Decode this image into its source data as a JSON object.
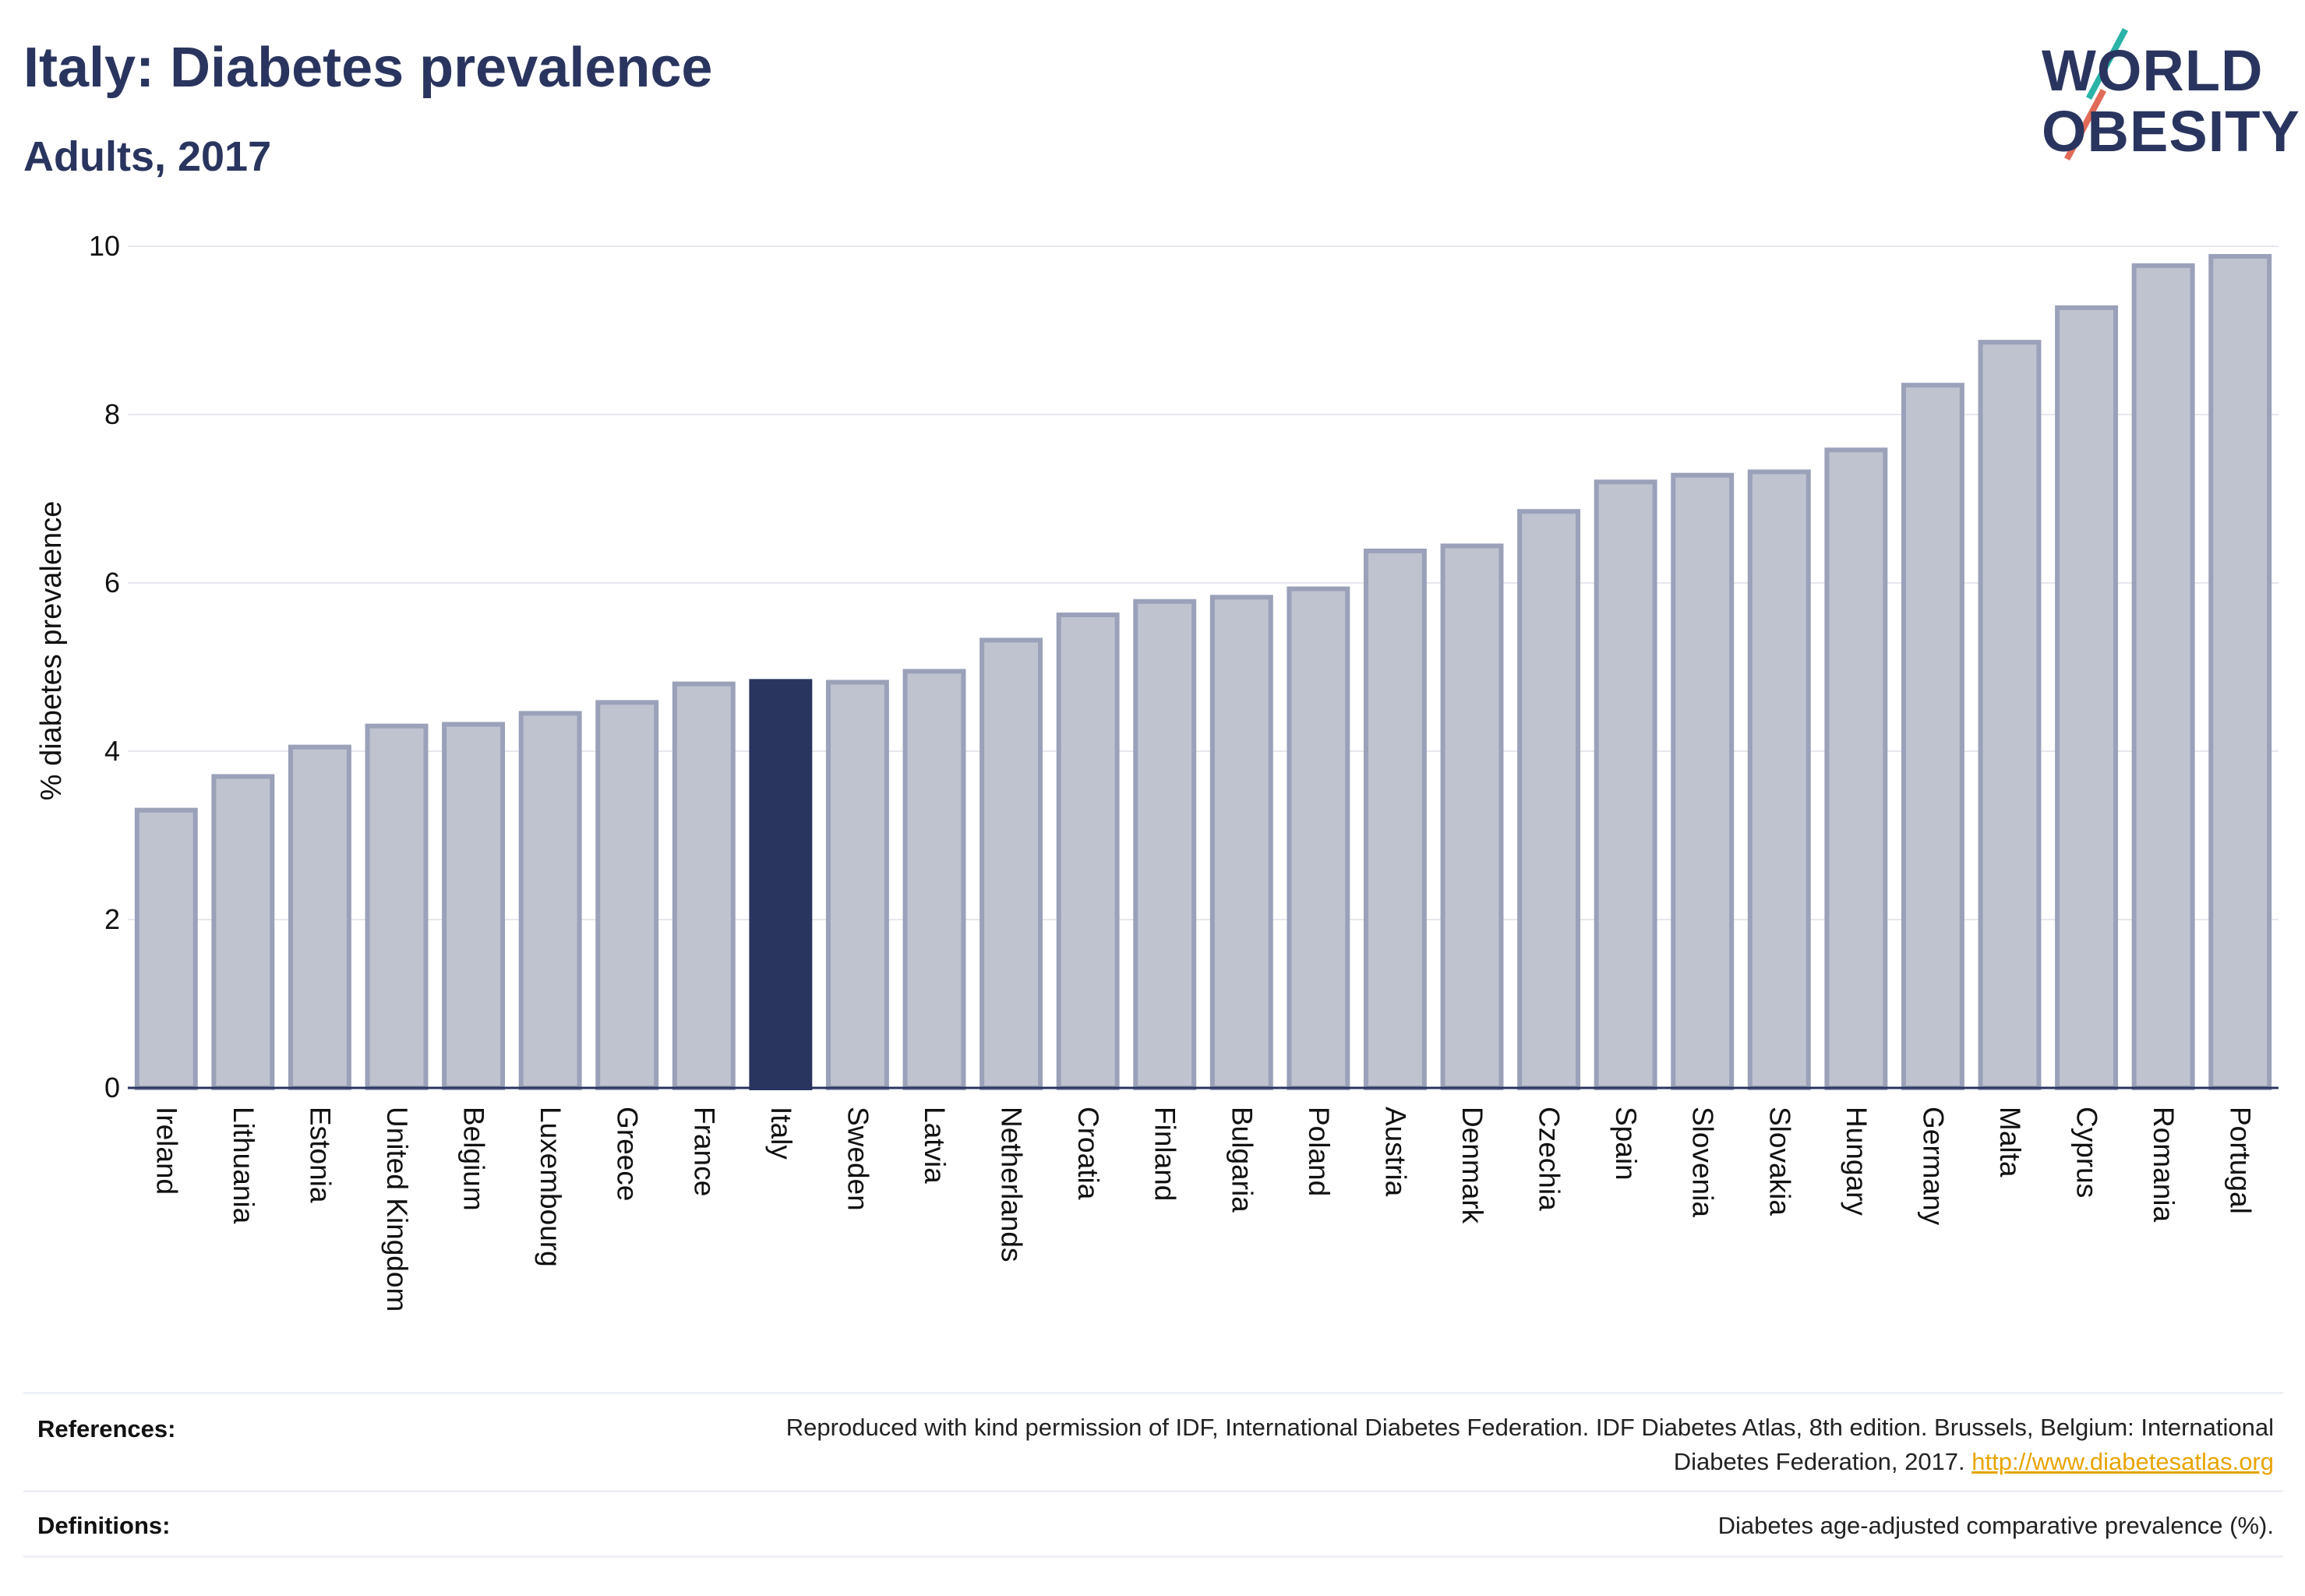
{
  "header": {
    "title": "Italy: Diabetes prevalence",
    "subtitle": "Adults, 2017",
    "logo_line1": "WORLD",
    "logo_line2": "OBESITY"
  },
  "chart_data": {
    "type": "bar",
    "ylabel": "% diabetes prevalence",
    "ylim": [
      0,
      10
    ],
    "yticks": [
      0,
      2,
      4,
      6,
      8,
      10
    ],
    "grid": true,
    "highlight": "Italy",
    "colors": {
      "bar": "#bfc3d0",
      "bar_border": "#9aa1b8",
      "highlight": "#2a355f",
      "grid": "#e6e8ee"
    },
    "categories": [
      "Ireland",
      "Lithuania",
      "Estonia",
      "United Kingdom",
      "Belgium",
      "Luxembourg",
      "Greece",
      "France",
      "Italy",
      "Sweden",
      "Latvia",
      "Netherlands",
      "Croatia",
      "Finland",
      "Bulgaria",
      "Poland",
      "Austria",
      "Denmark",
      "Czechia",
      "Spain",
      "Slovenia",
      "Slovakia",
      "Hungary",
      "Germany",
      "Malta",
      "Cyprus",
      "Romania",
      "Portugal"
    ],
    "values": [
      3.3,
      3.7,
      4.05,
      4.3,
      4.32,
      4.45,
      4.58,
      4.8,
      4.83,
      4.82,
      4.95,
      5.32,
      5.62,
      5.78,
      5.83,
      5.93,
      6.38,
      6.44,
      6.85,
      7.2,
      7.28,
      7.32,
      7.58,
      8.35,
      8.86,
      9.27,
      9.77,
      9.88
    ]
  },
  "footer": {
    "references_label": "References:",
    "references_text": "Reproduced with kind permission of IDF, International Diabetes Federation. IDF Diabetes Atlas, 8th edition. Brussels, Belgium: International Diabetes Federation, 2017.",
    "references_link": "http://www.diabetesatlas.org",
    "definitions_label": "Definitions:",
    "definitions_text": "Diabetes age-adjusted comparative prevalence (%)."
  }
}
